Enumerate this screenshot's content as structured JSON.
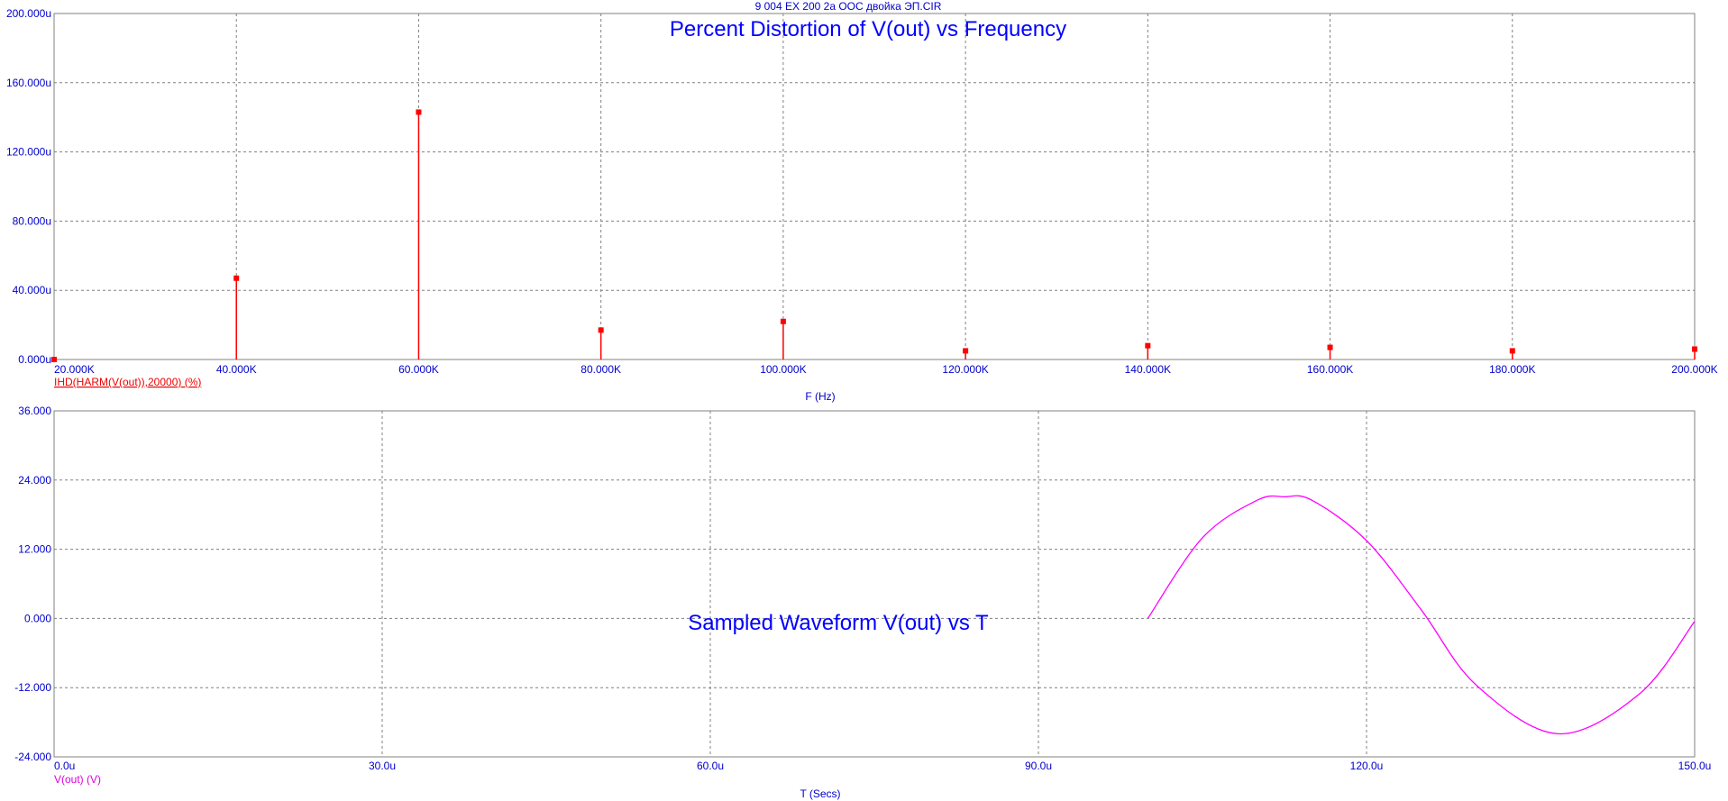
{
  "window": {
    "file_title": "9 004 EX 200 2a ООС двойка ЭП.CIR"
  },
  "colors": {
    "axis_text": "#0000cc",
    "title_text": "#0000ff",
    "grid": "#808080",
    "frame": "#808080",
    "harmonic_series": "#ff0000",
    "waveform_series": "#ff00ff"
  },
  "chart_data": [
    {
      "type": "bar",
      "title": "Percent Distortion of V(out) vs Frequency",
      "xlabel": "F (Hz)",
      "ylabel": "",
      "legend": "IHD(HARM(V(out)),20000) (%)",
      "legend_position": "bottom-left",
      "grid": true,
      "xlim": [
        20000,
        200000
      ],
      "ylim": [
        0,
        0.0002
      ],
      "x_ticks": [
        20000,
        40000,
        60000,
        80000,
        100000,
        120000,
        140000,
        160000,
        180000,
        200000
      ],
      "x_tick_labels": [
        "20.000K",
        "40.000K",
        "60.000K",
        "80.000K",
        "100.000K",
        "120.000K",
        "140.000K",
        "160.000K",
        "180.000K",
        "200.000K"
      ],
      "y_ticks": [
        0,
        4e-05,
        8e-05,
        0.00012,
        0.00016,
        0.0002
      ],
      "y_tick_labels": [
        "0.000u",
        "40.000u",
        "80.000u",
        "120.000u",
        "160.000u",
        "200.000u"
      ],
      "series": [
        {
          "name": "IHD(HARM(V(out)),20000) (%)",
          "x": [
            20000,
            40000,
            60000,
            80000,
            100000,
            120000,
            140000,
            160000,
            180000,
            200000
          ],
          "values": [
            0,
            4.7e-05,
            0.000143,
            1.7e-05,
            2.2e-05,
            5e-06,
            8e-06,
            7e-06,
            5e-06,
            6e-06
          ]
        }
      ]
    },
    {
      "type": "line",
      "title": "Sampled Waveform  V(out) vs T",
      "xlabel": "T (Secs)",
      "ylabel": "",
      "legend": "V(out) (V)",
      "legend_position": "bottom-left",
      "grid": true,
      "xlim": [
        0,
        0.00015
      ],
      "ylim": [
        -24,
        36
      ],
      "x_ticks": [
        0,
        3e-05,
        6e-05,
        9e-05,
        0.00012,
        0.00015
      ],
      "x_tick_labels": [
        "0.0u",
        "30.0u",
        "60.0u",
        "90.0u",
        "120.0u",
        "150.0u"
      ],
      "y_ticks": [
        -24,
        -12,
        0,
        12,
        24,
        36
      ],
      "y_tick_labels": [
        "-24.000",
        "-12.000",
        "0.000",
        "12.000",
        "24.000",
        "36.000"
      ],
      "series": [
        {
          "name": "V(out) (V)",
          "x": [
            0.0001,
            0.000105,
            0.00011,
            0.0001125,
            0.000115,
            0.00012,
            0.000125,
            0.00013,
            0.0001375,
            0.000145,
            0.00015
          ],
          "values": [
            0,
            14.0,
            20.5,
            21.1,
            20.5,
            13.5,
            1.5,
            -11.5,
            -20,
            -13.0,
            -0.5
          ]
        }
      ]
    }
  ]
}
